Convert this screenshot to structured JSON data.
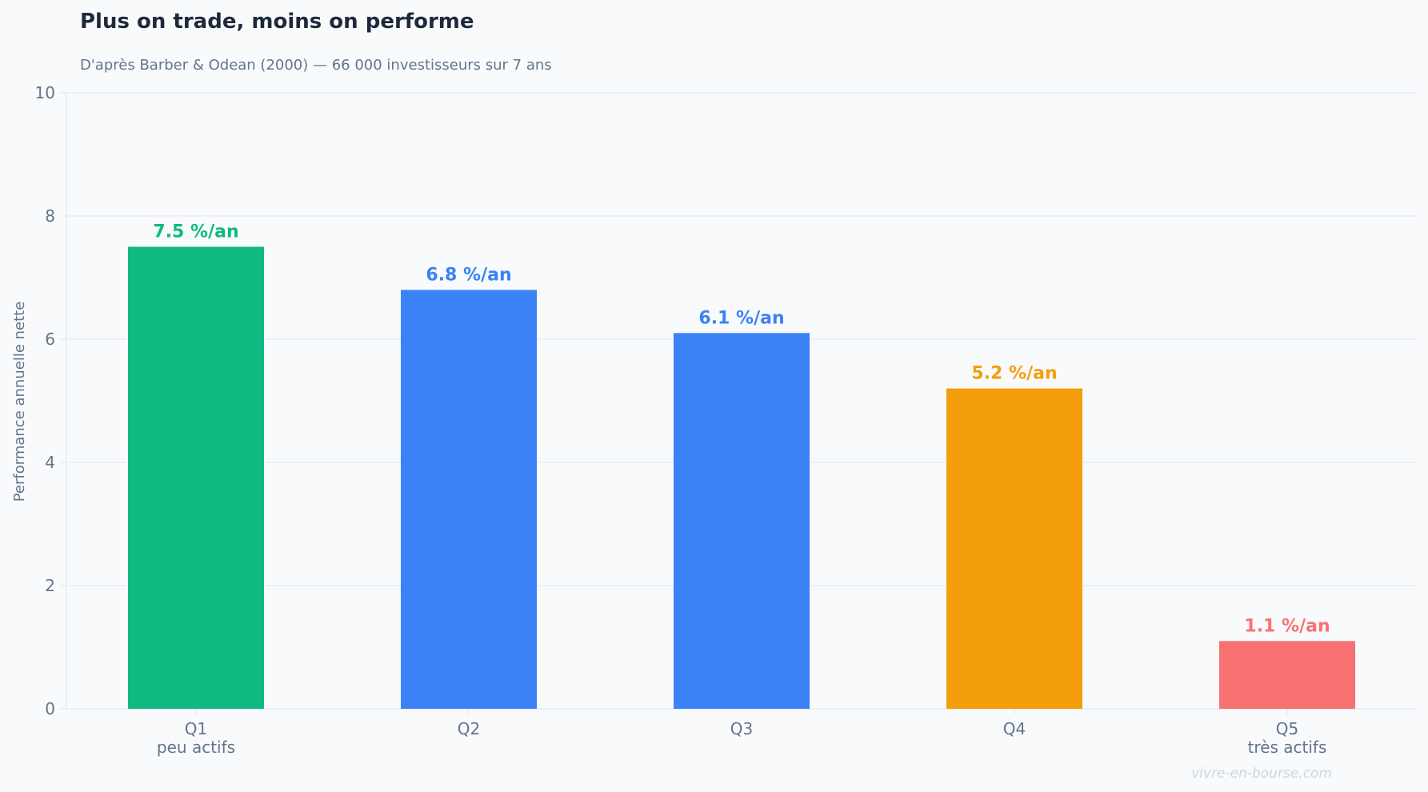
{
  "chart_data": {
    "type": "bar",
    "title": "Plus on trade, moins on performe",
    "subtitle": "D'après Barber & Odean (2000) — 66 000 investisseurs sur 7 ans",
    "xlabel": "",
    "ylabel": "Performance annuelle nette",
    "ylim": [
      0,
      10
    ],
    "yticks": [
      0,
      2,
      4,
      6,
      8,
      10
    ],
    "grid": true,
    "categories": [
      {
        "label": "Q1",
        "sublabel": "peu actifs"
      },
      {
        "label": "Q2",
        "sublabel": ""
      },
      {
        "label": "Q3",
        "sublabel": ""
      },
      {
        "label": "Q4",
        "sublabel": ""
      },
      {
        "label": "Q5",
        "sublabel": "très actifs"
      }
    ],
    "values": [
      7.5,
      6.8,
      6.1,
      5.2,
      1.1
    ],
    "value_labels": [
      "7.5 %/an",
      "6.8 %/an",
      "6.1 %/an",
      "5.2 %/an",
      "1.1 %/an"
    ],
    "colors": [
      "#10b981",
      "#3b82f6",
      "#3b82f6",
      "#f59e0b",
      "#f87171"
    ]
  },
  "watermark": "vivre-en-bourse.com"
}
